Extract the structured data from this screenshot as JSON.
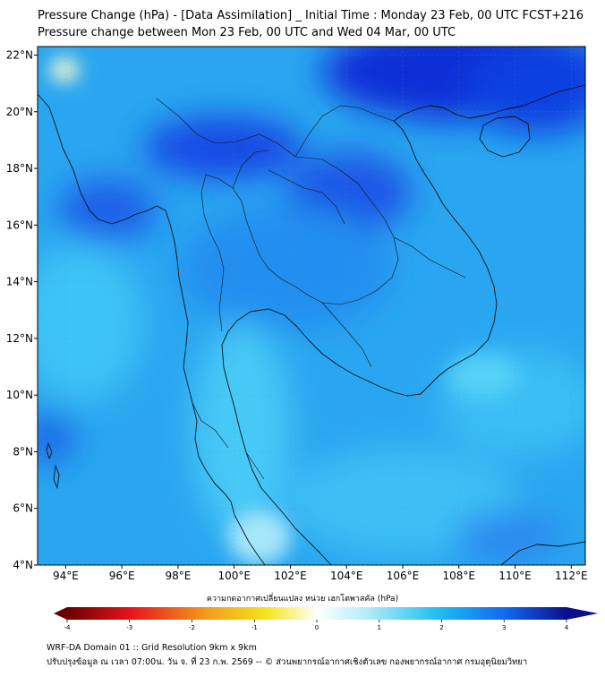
{
  "titles": {
    "line1": "Pressure Change (hPa) - [Data Assimilation] _ Initial Time : Monday 23 Feb, 00 UTC FCST+216",
    "line2": "Pressure change between Mon 23 Feb, 00 UTC and Wed 04 Mar, 00 UTC"
  },
  "map": {
    "lon_ticks": [
      "94°E",
      "96°E",
      "98°E",
      "100°E",
      "102°E",
      "104°E",
      "106°E",
      "108°E",
      "110°E",
      "112°E"
    ],
    "lat_ticks": [
      "22°N",
      "20°N",
      "18°N",
      "16°N",
      "14°N",
      "12°N",
      "10°N",
      "8°N",
      "6°N",
      "4°N"
    ],
    "lon_range": [
      93,
      112.5
    ],
    "lat_range": [
      4,
      22.3
    ]
  },
  "colorbar": {
    "label": "ความกดอากาศเปลี่ยนแปลง หน่วย เฮกโตพาสคัล (hPa)",
    "min": -4,
    "max": 4,
    "ticks": [
      "-4",
      "-3",
      "-2",
      "-1",
      "0",
      "1",
      "2",
      "3",
      "4"
    ],
    "colors": {
      "neg_dark": "#6b0000",
      "neg_red": "#e8161b",
      "neg_orange": "#f39c1e",
      "neg_yellow": "#f7e41c",
      "zero": "#ffffff",
      "pos_light": "#b5ebf9",
      "pos_cyan": "#1fc0f2",
      "pos_blue": "#1167ee",
      "pos_dark": "#0b0f8a"
    }
  },
  "footer": {
    "line1": "WRF-DA Domain 01 :: Grid Resolution 9km x 9km",
    "line2": "ปรับปรุงข้อมูล ณ เวลา 07:00น. วัน จ. ที่ 23 ก.พ. 2569 -- © ส่วนพยากรณ์อากาศเชิงตัวเลข กองพยากรณ์อากาศ กรมอุตุนิยมวิทยา"
  }
}
